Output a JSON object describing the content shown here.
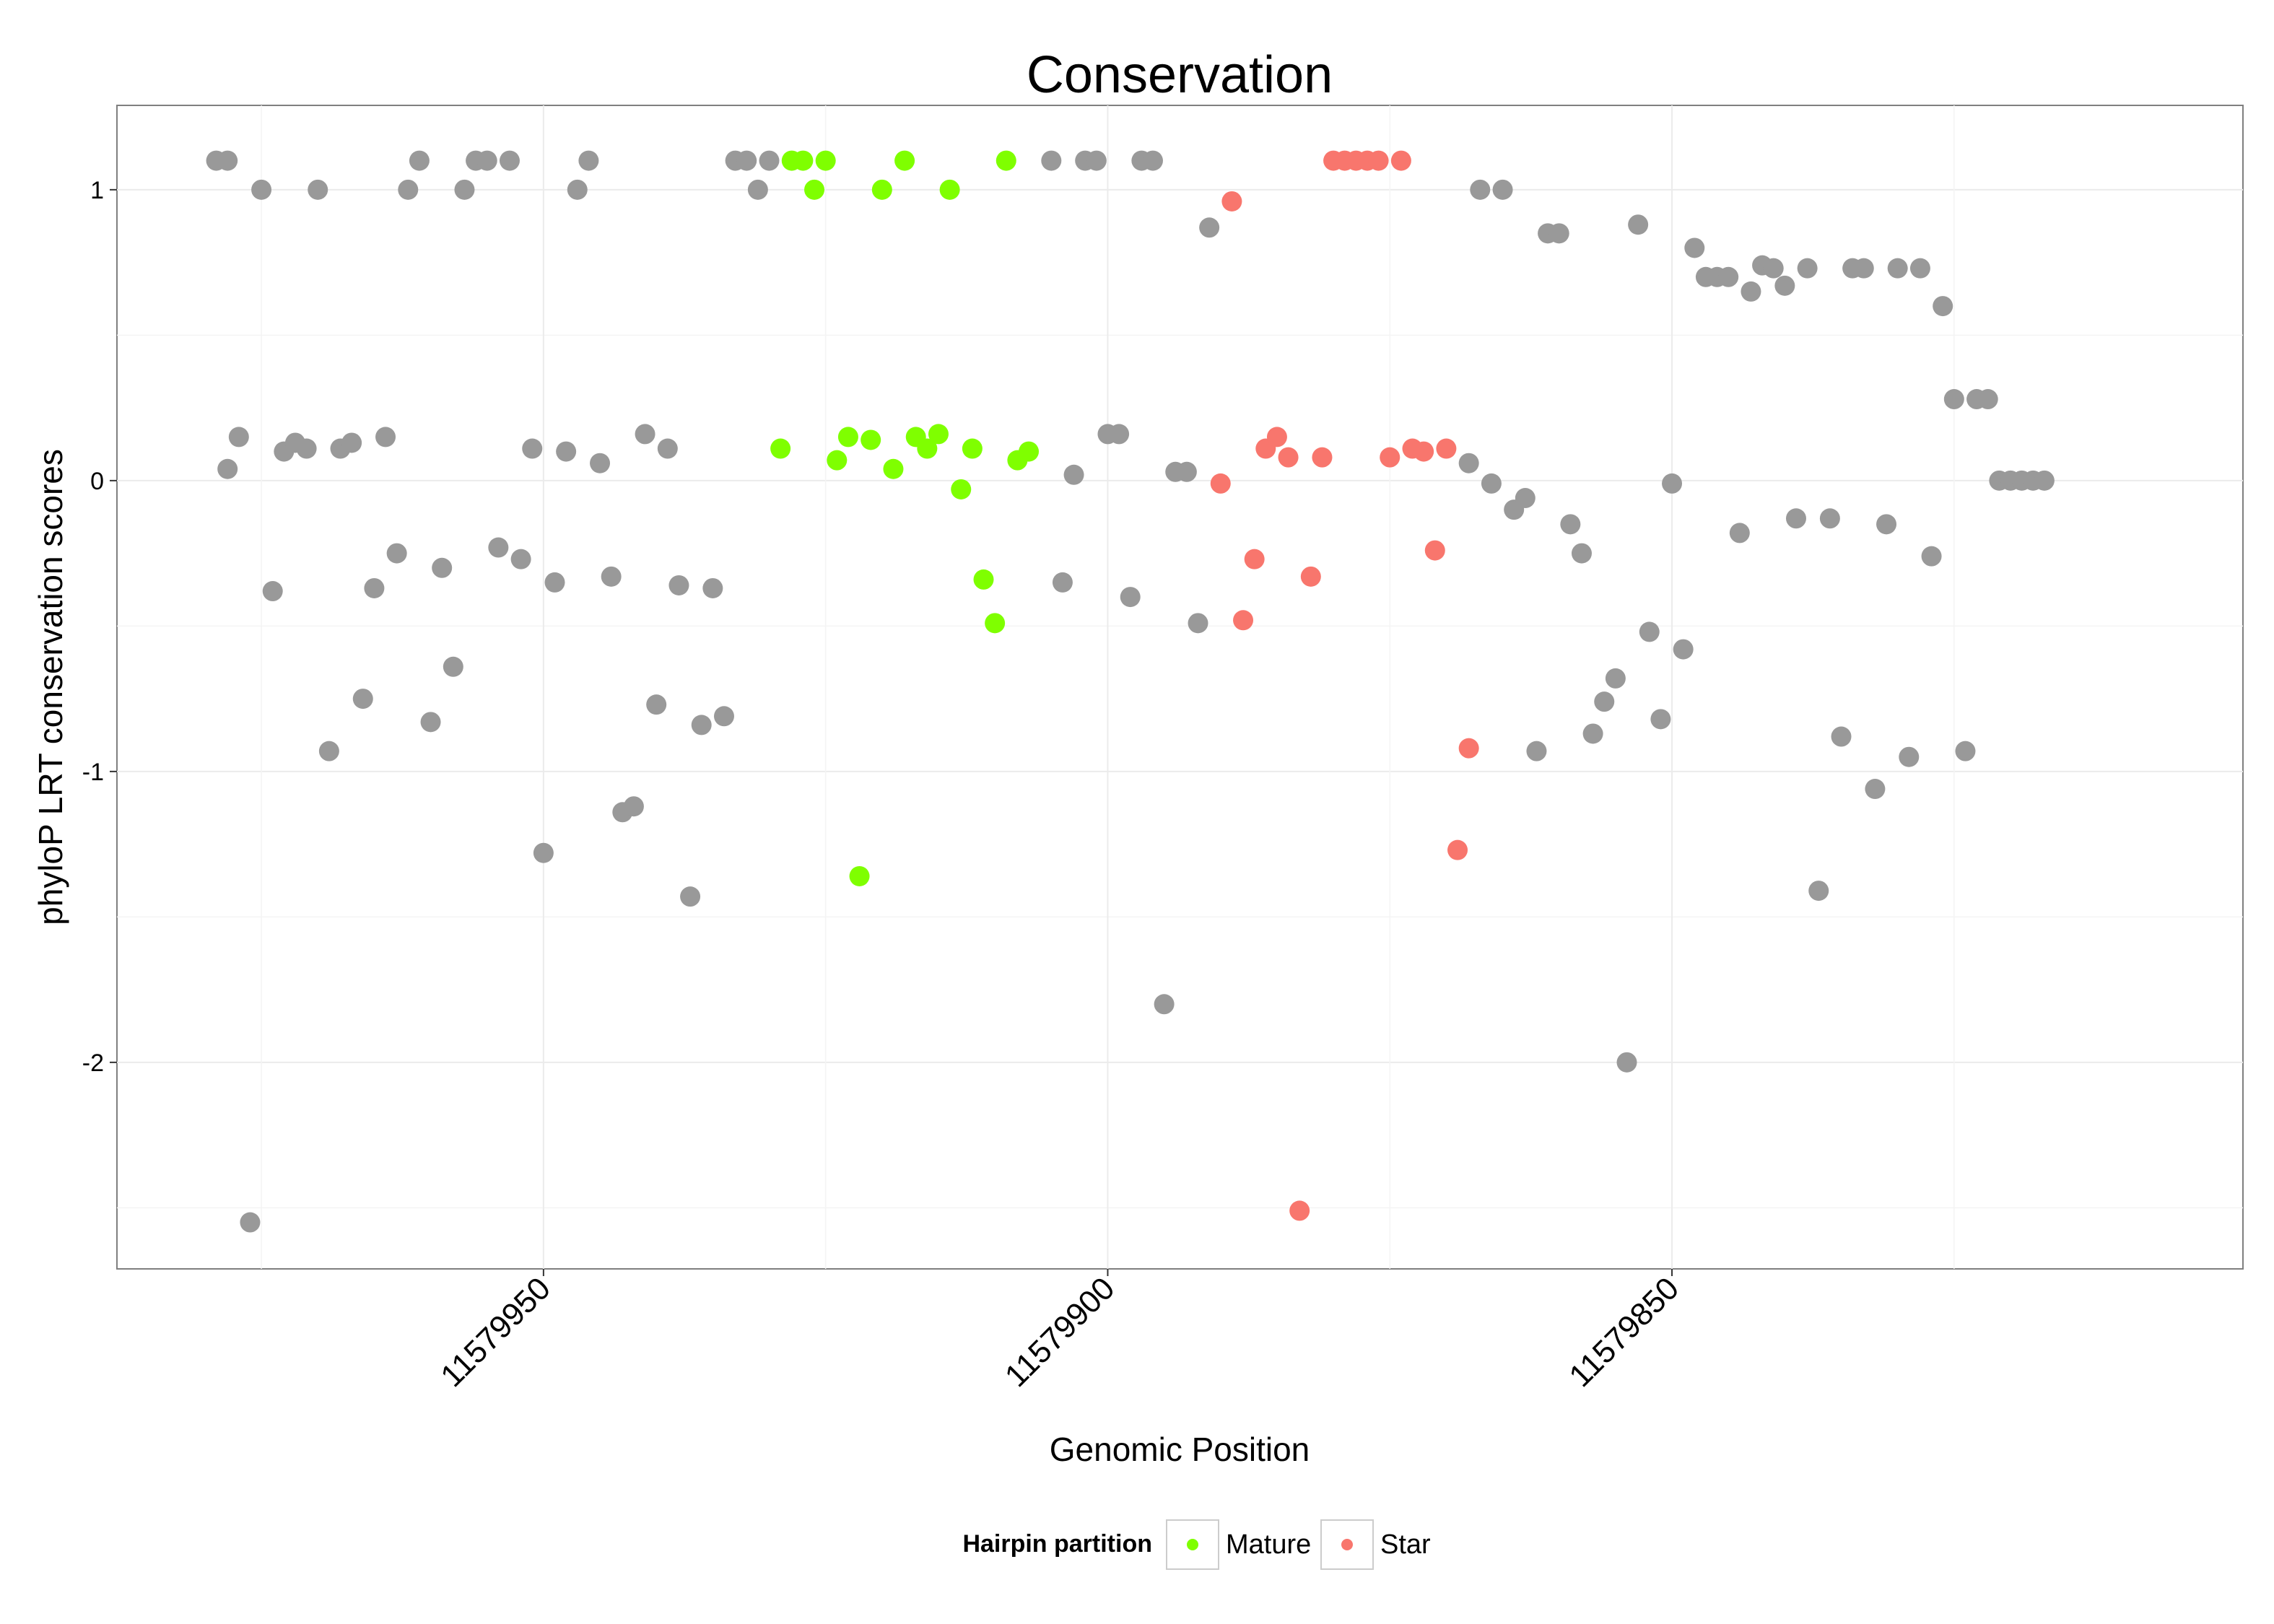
{
  "chart_data": {
    "type": "scatter",
    "title": "Conservation",
    "xlabel": "Genomic Position",
    "ylabel": "phyloP LRT conservation scores",
    "xlim": [
      11579987.8,
      11579799.4
    ],
    "ylim": [
      -2.71,
      1.29
    ],
    "x_reversed": true,
    "x_ticks": [
      11579950,
      11579900,
      11579850
    ],
    "x_tick_labels": [
      "11579950",
      "11579900",
      "11579850"
    ],
    "y_ticks": [
      -2,
      -1,
      0,
      1
    ],
    "y_tick_labels": [
      "-2",
      "-1",
      "0",
      "1"
    ],
    "grid": true,
    "legend": {
      "title": "Hairpin partition",
      "position": "bottom",
      "entries": [
        {
          "label": "Mature",
          "color": "#7FFF00"
        },
        {
          "label": "Star",
          "color": "#F8766D"
        }
      ]
    },
    "colors": {
      "other": "#999999",
      "Mature": "#7FFF00",
      "Star": "#F8766D"
    },
    "series": [
      {
        "name": "Other",
        "color": "#999999",
        "points": [
          [
            11579979,
            1.1
          ],
          [
            11579978,
            0.04
          ],
          [
            11579978,
            1.1
          ],
          [
            11579977,
            0.15
          ],
          [
            11579976,
            -2.55
          ],
          [
            11579975,
            1.0
          ],
          [
            11579974,
            -0.38
          ],
          [
            11579973,
            0.1
          ],
          [
            11579972,
            0.13
          ],
          [
            11579971,
            0.11
          ],
          [
            11579970,
            1.0
          ],
          [
            11579969,
            -0.93
          ],
          [
            11579968,
            0.11
          ],
          [
            11579967,
            0.13
          ],
          [
            11579966,
            -0.75
          ],
          [
            11579965,
            -0.37
          ],
          [
            11579964,
            0.15
          ],
          [
            11579963,
            -0.25
          ],
          [
            11579962,
            1.0
          ],
          [
            11579961,
            1.1
          ],
          [
            11579960,
            -0.83
          ],
          [
            11579959,
            -0.3
          ],
          [
            11579958,
            -0.64
          ],
          [
            11579957,
            1.0
          ],
          [
            11579956,
            1.1
          ],
          [
            11579955,
            1.1
          ],
          [
            11579954,
            -0.23
          ],
          [
            11579953,
            1.1
          ],
          [
            11579952,
            -0.27
          ],
          [
            11579951,
            0.11
          ],
          [
            11579950,
            -1.28
          ],
          [
            11579949,
            -0.35
          ],
          [
            11579948,
            0.1
          ],
          [
            11579947,
            1.0
          ],
          [
            11579946,
            1.1
          ],
          [
            11579945,
            0.06
          ],
          [
            11579944,
            -0.33
          ],
          [
            11579943,
            -1.14
          ],
          [
            11579942,
            -1.12
          ],
          [
            11579941,
            0.16
          ],
          [
            11579940,
            -0.77
          ],
          [
            11579939,
            0.11
          ],
          [
            11579938,
            -0.36
          ],
          [
            11579937,
            -1.43
          ],
          [
            11579936,
            -0.84
          ],
          [
            11579935,
            -0.37
          ],
          [
            11579934,
            -0.81
          ],
          [
            11579933,
            1.1
          ],
          [
            11579932,
            1.1
          ],
          [
            11579931,
            1.0
          ],
          [
            11579930,
            1.1
          ],
          [
            11579905,
            1.1
          ],
          [
            11579904,
            -0.35
          ],
          [
            11579903,
            0.02
          ],
          [
            11579902,
            1.1
          ],
          [
            11579901,
            1.1
          ],
          [
            11579900,
            0.16
          ],
          [
            11579899,
            0.16
          ],
          [
            11579898,
            -0.4
          ],
          [
            11579897,
            1.1
          ],
          [
            11579896,
            1.1
          ],
          [
            11579895,
            -1.8
          ],
          [
            11579894,
            0.03
          ],
          [
            11579893,
            0.03
          ],
          [
            11579892,
            -0.49
          ],
          [
            11579891,
            0.87
          ],
          [
            11579868,
            0.06
          ],
          [
            11579867,
            1.0
          ],
          [
            11579866,
            -0.01
          ],
          [
            11579865,
            1.0
          ],
          [
            11579864,
            -0.1
          ],
          [
            11579863,
            -0.06
          ],
          [
            11579862,
            -0.93
          ],
          [
            11579861,
            0.85
          ],
          [
            11579860,
            0.85
          ],
          [
            11579859,
            -0.15
          ],
          [
            11579858,
            -0.25
          ],
          [
            11579857,
            -0.87
          ],
          [
            11579856,
            -0.76
          ],
          [
            11579855,
            -0.68
          ],
          [
            11579854,
            -2.0
          ],
          [
            11579853,
            0.88
          ],
          [
            11579852,
            -0.52
          ],
          [
            11579851,
            -0.82
          ],
          [
            11579850,
            -0.01
          ],
          [
            11579849,
            -0.58
          ],
          [
            11579848,
            0.8
          ],
          [
            11579847,
            0.7
          ],
          [
            11579846,
            0.7
          ],
          [
            11579845,
            0.7
          ],
          [
            11579844,
            -0.18
          ],
          [
            11579843,
            0.65
          ],
          [
            11579842,
            0.74
          ],
          [
            11579841,
            0.73
          ],
          [
            11579840,
            0.67
          ],
          [
            11579839,
            -0.13
          ],
          [
            11579838,
            0.73
          ],
          [
            11579837,
            -1.41
          ],
          [
            11579836,
            -0.13
          ],
          [
            11579835,
            -0.88
          ],
          [
            11579834,
            0.73
          ],
          [
            11579833,
            0.73
          ],
          [
            11579832,
            -1.06
          ],
          [
            11579831,
            -0.15
          ],
          [
            11579830,
            0.73
          ],
          [
            11579829,
            -0.95
          ],
          [
            11579828,
            0.73
          ],
          [
            11579827,
            -0.26
          ],
          [
            11579826,
            0.6
          ],
          [
            11579825,
            0.28
          ],
          [
            11579824,
            -0.93
          ],
          [
            11579823,
            0.28
          ],
          [
            11579822,
            0.28
          ],
          [
            11579821,
            0.0
          ],
          [
            11579820,
            0.0
          ],
          [
            11579819,
            0.0
          ],
          [
            11579818,
            0.0
          ],
          [
            11579817,
            0.0
          ]
        ]
      },
      {
        "name": "Mature",
        "color": "#7FFF00",
        "points": [
          [
            11579929,
            0.11
          ],
          [
            11579928,
            1.1
          ],
          [
            11579927,
            1.1
          ],
          [
            11579926,
            1.0
          ],
          [
            11579925,
            1.1
          ],
          [
            11579924,
            0.07
          ],
          [
            11579923,
            0.15
          ],
          [
            11579922,
            -1.36
          ],
          [
            11579921,
            0.14
          ],
          [
            11579920,
            1.0
          ],
          [
            11579919,
            0.04
          ],
          [
            11579918,
            1.1
          ],
          [
            11579917,
            0.15
          ],
          [
            11579916,
            0.11
          ],
          [
            11579915,
            0.16
          ],
          [
            11579914,
            1.0
          ],
          [
            11579913,
            -0.03
          ],
          [
            11579912,
            0.11
          ],
          [
            11579911,
            -0.34
          ],
          [
            11579910,
            -0.49
          ],
          [
            11579909,
            1.1
          ],
          [
            11579908,
            0.07
          ],
          [
            11579907,
            0.1
          ]
        ]
      },
      {
        "name": "Star",
        "color": "#F8766D",
        "points": [
          [
            11579890,
            -0.01
          ],
          [
            11579889,
            0.96
          ],
          [
            11579888,
            -0.48
          ],
          [
            11579887,
            -0.27
          ],
          [
            11579886,
            0.11
          ],
          [
            11579885,
            0.15
          ],
          [
            11579884,
            0.08
          ],
          [
            11579883,
            -2.51
          ],
          [
            11579882,
            -0.33
          ],
          [
            11579881,
            0.08
          ],
          [
            11579880,
            1.1
          ],
          [
            11579879,
            1.1
          ],
          [
            11579878,
            1.1
          ],
          [
            11579877,
            1.1
          ],
          [
            11579876,
            1.1
          ],
          [
            11579875,
            0.08
          ],
          [
            11579874,
            1.1
          ],
          [
            11579873,
            0.11
          ],
          [
            11579872,
            0.1
          ],
          [
            11579871,
            -0.24
          ],
          [
            11579870,
            0.11
          ],
          [
            11579869,
            -1.27
          ],
          [
            11579868,
            -0.92
          ]
        ]
      }
    ]
  }
}
